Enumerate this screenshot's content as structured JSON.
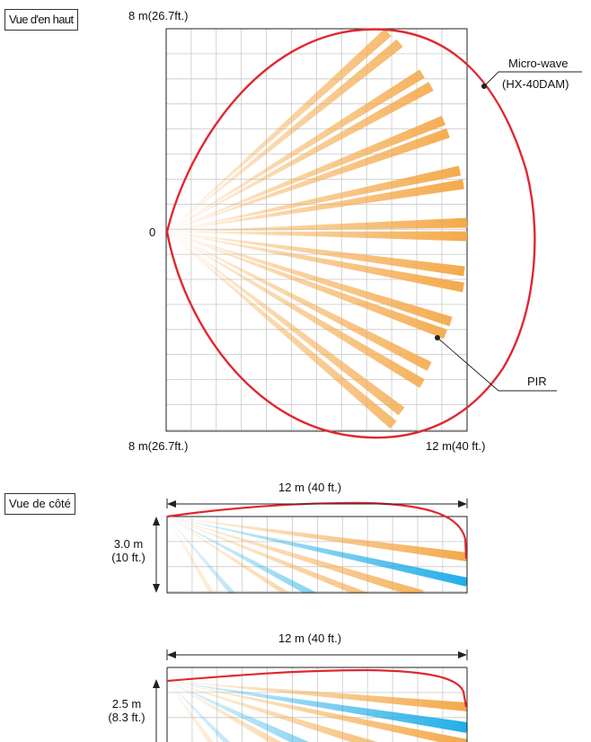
{
  "top_view": {
    "title": "Vue d'en haut",
    "top_left_label": "8 m(26.7ft.)",
    "origin_label": "0",
    "bottom_left_label": "8 m(26.7ft.)",
    "bottom_right_label": "12 m(40 ft.)",
    "microwave_label": "Micro-wave",
    "microwave_model": "(HX-40DAM)",
    "pir_label": "PIR"
  },
  "side_view_1": {
    "title": "Vue de côté",
    "length_label": "12 m (40 ft.)",
    "height_label": "3.0 m",
    "height_label_ft": "(10 ft.)"
  },
  "side_view_2": {
    "length_label": "12 m (40 ft.)",
    "height_label": "2.5 m",
    "height_label_ft": "(8.3 ft.)"
  },
  "colors": {
    "microwave_red": "#e0282f",
    "pir_orange": "#f4a94a",
    "pir_blue": "#22aee8",
    "grid": "#c8c8c8",
    "frame": "#222222"
  }
}
